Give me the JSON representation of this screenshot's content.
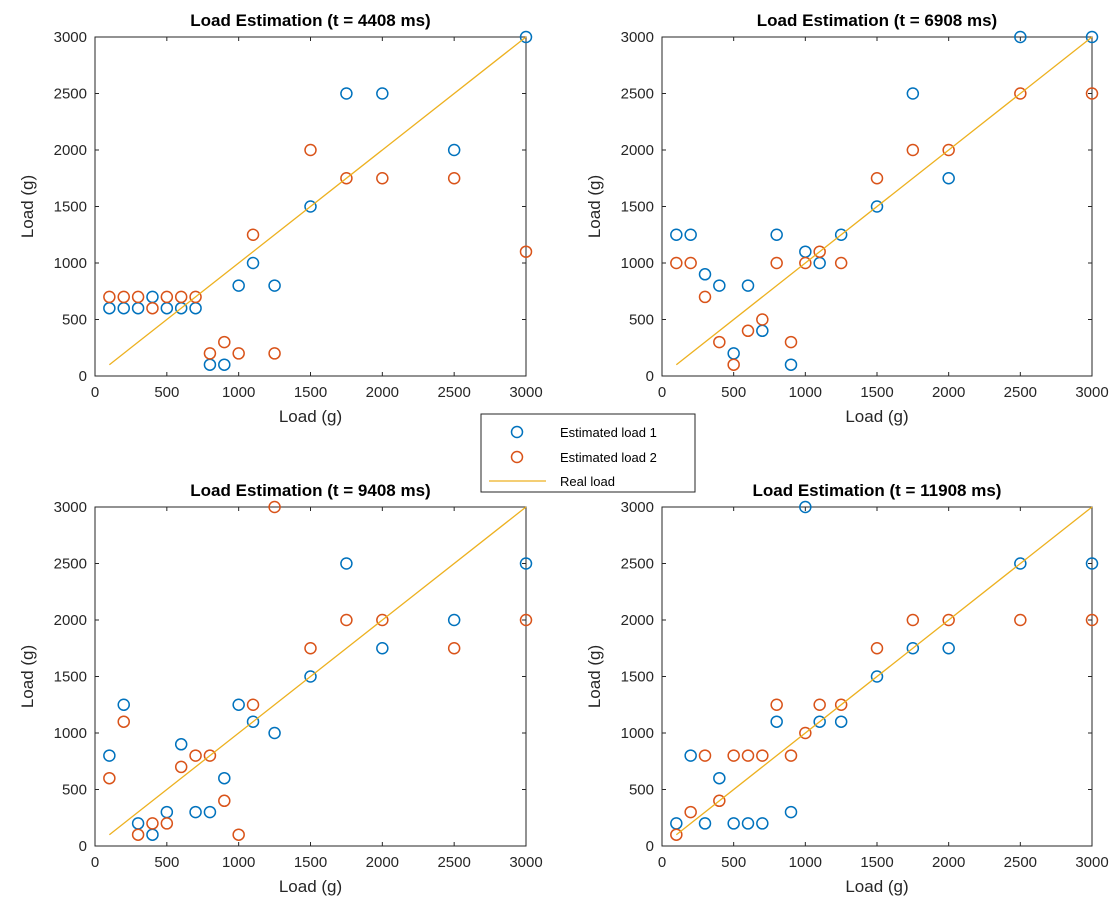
{
  "colors": {
    "estimated_1": "#0072BD",
    "estimated_2": "#D95319",
    "real": "#EDB120",
    "axes": "#262626"
  },
  "legend": {
    "placement": "center",
    "entries": [
      {
        "label": "Estimated load 1",
        "marker": "circle",
        "color": "#0072BD"
      },
      {
        "label": "Estimated load 2",
        "marker": "circle",
        "color": "#D95319"
      },
      {
        "label": "Real load",
        "marker": "line",
        "color": "#EDB120"
      }
    ]
  },
  "chart_data": [
    {
      "type": "scatter",
      "title": "Load Estimation (t = 4408 ms)",
      "xlabel": "Load (g)",
      "ylabel": "Load (g)",
      "xlim": [
        0,
        3000
      ],
      "ylim": [
        0,
        3000
      ],
      "xticks": [
        0,
        500,
        1000,
        1500,
        2000,
        2500,
        3000
      ],
      "yticks": [
        0,
        500,
        1000,
        1500,
        2000,
        2500,
        3000
      ],
      "grid": false,
      "series": [
        {
          "name": "Estimated load 1",
          "style": "circle",
          "x": [
            100,
            200,
            300,
            400,
            500,
            600,
            700,
            800,
            900,
            1000,
            1100,
            1250,
            1500,
            1750,
            2000,
            2500,
            3000
          ],
          "y": [
            600,
            600,
            600,
            700,
            600,
            600,
            600,
            100,
            100,
            800,
            1000,
            800,
            1500,
            2500,
            2500,
            2000,
            3000
          ]
        },
        {
          "name": "Estimated load 2",
          "style": "circle",
          "x": [
            100,
            200,
            300,
            400,
            500,
            600,
            700,
            800,
            900,
            1000,
            1100,
            1250,
            1500,
            1750,
            2000,
            2500,
            3000
          ],
          "y": [
            700,
            700,
            700,
            600,
            700,
            700,
            700,
            200,
            300,
            200,
            1250,
            200,
            2000,
            1750,
            1750,
            1750,
            1100
          ]
        },
        {
          "name": "Real load",
          "style": "line",
          "x": [
            100,
            3000
          ],
          "y": [
            100,
            3000
          ]
        }
      ]
    },
    {
      "type": "scatter",
      "title": "Load Estimation (t = 6908 ms)",
      "xlabel": "Load (g)",
      "ylabel": "Load (g)",
      "xlim": [
        0,
        3000
      ],
      "ylim": [
        0,
        3000
      ],
      "xticks": [
        0,
        500,
        1000,
        1500,
        2000,
        2500,
        3000
      ],
      "yticks": [
        0,
        500,
        1000,
        1500,
        2000,
        2500,
        3000
      ],
      "grid": false,
      "series": [
        {
          "name": "Estimated load 1",
          "style": "circle",
          "x": [
            100,
            200,
            300,
            400,
            500,
            600,
            700,
            800,
            900,
            1000,
            1100,
            1250,
            1500,
            1750,
            2000,
            2500,
            3000
          ],
          "y": [
            1250,
            1250,
            900,
            800,
            200,
            800,
            400,
            1250,
            100,
            1100,
            1000,
            1250,
            1500,
            2500,
            1750,
            3000,
            3000
          ]
        },
        {
          "name": "Estimated load 2",
          "style": "circle",
          "x": [
            100,
            200,
            300,
            400,
            500,
            600,
            700,
            800,
            900,
            1000,
            1100,
            1250,
            1500,
            1750,
            2000,
            2500,
            3000
          ],
          "y": [
            1000,
            1000,
            700,
            300,
            100,
            400,
            500,
            1000,
            300,
            1000,
            1100,
            1000,
            1750,
            2000,
            2000,
            2500,
            2500
          ]
        },
        {
          "name": "Real load",
          "style": "line",
          "x": [
            100,
            3000
          ],
          "y": [
            100,
            3000
          ]
        }
      ]
    },
    {
      "type": "scatter",
      "title": "Load Estimation (t = 9408 ms)",
      "xlabel": "Load (g)",
      "ylabel": "Load (g)",
      "xlim": [
        0,
        3000
      ],
      "ylim": [
        0,
        3000
      ],
      "xticks": [
        0,
        500,
        1000,
        1500,
        2000,
        2500,
        3000
      ],
      "yticks": [
        0,
        500,
        1000,
        1500,
        2000,
        2500,
        3000
      ],
      "grid": false,
      "series": [
        {
          "name": "Estimated load 1",
          "style": "circle",
          "x": [
            100,
            200,
            300,
            400,
            500,
            600,
            700,
            800,
            900,
            1000,
            1100,
            1250,
            1500,
            1750,
            2000,
            2500,
            3000
          ],
          "y": [
            800,
            1250,
            200,
            100,
            300,
            900,
            300,
            300,
            600,
            1250,
            1100,
            1000,
            1500,
            2500,
            1750,
            2000,
            2500
          ]
        },
        {
          "name": "Estimated load 2",
          "style": "circle",
          "x": [
            100,
            200,
            300,
            400,
            500,
            600,
            700,
            800,
            900,
            1000,
            1100,
            1250,
            1500,
            1750,
            2000,
            2500,
            3000
          ],
          "y": [
            600,
            1100,
            100,
            200,
            200,
            700,
            800,
            800,
            400,
            100,
            1250,
            3000,
            1750,
            2000,
            2000,
            1750,
            2000
          ]
        },
        {
          "name": "Real load",
          "style": "line",
          "x": [
            100,
            3000
          ],
          "y": [
            100,
            3000
          ]
        }
      ]
    },
    {
      "type": "scatter",
      "title": "Load Estimation (t = 11908 ms)",
      "xlabel": "Load (g)",
      "ylabel": "Load (g)",
      "xlim": [
        0,
        3000
      ],
      "ylim": [
        0,
        3000
      ],
      "xticks": [
        0,
        500,
        1000,
        1500,
        2000,
        2500,
        3000
      ],
      "yticks": [
        0,
        500,
        1000,
        1500,
        2000,
        2500,
        3000
      ],
      "grid": false,
      "series": [
        {
          "name": "Estimated load 1",
          "style": "circle",
          "x": [
            100,
            200,
            300,
            400,
            500,
            600,
            700,
            800,
            900,
            1000,
            1100,
            1250,
            1500,
            1750,
            2000,
            2500,
            3000
          ],
          "y": [
            200,
            800,
            200,
            600,
            200,
            200,
            200,
            1100,
            300,
            3000,
            1100,
            1100,
            1500,
            1750,
            1750,
            2500,
            2500
          ]
        },
        {
          "name": "Estimated load 2",
          "style": "circle",
          "x": [
            100,
            200,
            300,
            400,
            500,
            600,
            700,
            800,
            900,
            1000,
            1100,
            1250,
            1500,
            1750,
            2000,
            2500,
            3000
          ],
          "y": [
            100,
            300,
            800,
            400,
            800,
            800,
            800,
            1250,
            800,
            1000,
            1250,
            1250,
            1750,
            2000,
            2000,
            2000,
            2000
          ]
        },
        {
          "name": "Real load",
          "style": "line",
          "x": [
            100,
            3000
          ],
          "y": [
            100,
            3000
          ]
        }
      ]
    }
  ]
}
